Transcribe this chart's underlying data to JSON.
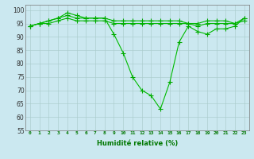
{
  "xlabel": "Humidité relative (%)",
  "bg_color": "#cbe8f0",
  "grid_color": "#aacccc",
  "line_color": "#00bb00",
  "marker_color": "#00aa00",
  "xlim": [
    -0.5,
    23.5
  ],
  "ylim": [
    55,
    102
  ],
  "yticks": [
    55,
    60,
    65,
    70,
    75,
    80,
    85,
    90,
    95,
    100
  ],
  "xticks": [
    0,
    1,
    2,
    3,
    4,
    5,
    6,
    7,
    8,
    9,
    10,
    11,
    12,
    13,
    14,
    15,
    16,
    17,
    18,
    19,
    20,
    21,
    22,
    23
  ],
  "series1": [
    94,
    95,
    96,
    97,
    99,
    98,
    97,
    97,
    97,
    91,
    84,
    75,
    70,
    68,
    63,
    73,
    88,
    94,
    92,
    91,
    93,
    93,
    94,
    97
  ],
  "series2": [
    94,
    95,
    95,
    96,
    97,
    96,
    96,
    96,
    96,
    95,
    95,
    95,
    95,
    95,
    95,
    95,
    95,
    95,
    94,
    95,
    95,
    95,
    95,
    96
  ],
  "series3": [
    94,
    95,
    96,
    97,
    98,
    97,
    97,
    97,
    97,
    96,
    96,
    96,
    96,
    96,
    96,
    96,
    96,
    95,
    95,
    96,
    96,
    96,
    95,
    97
  ]
}
